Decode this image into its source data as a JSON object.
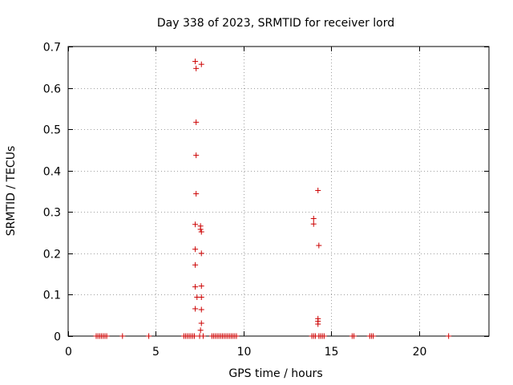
{
  "chart_data": {
    "type": "scatter",
    "title": "Day 338 of 2023, SRMTID for receiver lord",
    "xlabel": "GPS time / hours",
    "ylabel": "SRMTID / TECUs",
    "xlim": [
      0,
      24
    ],
    "ylim": [
      0,
      0.7
    ],
    "xticks": [
      0,
      5,
      10,
      15,
      20
    ],
    "yticks": [
      0,
      0.1,
      0.2,
      0.3,
      0.4,
      0.5,
      0.6,
      0.7
    ],
    "xtick_labels": [
      "0",
      "5",
      "10",
      "15",
      "20"
    ],
    "ytick_labels": [
      "0",
      "0.1",
      "0.2",
      "0.3",
      "0.4",
      "0.5",
      "0.6",
      "0.7"
    ],
    "grid": true,
    "marker": "+",
    "color": "#cc0000",
    "points": [
      [
        7.25,
        0.664
      ],
      [
        7.3,
        0.647
      ],
      [
        7.6,
        0.657
      ],
      [
        7.3,
        0.517
      ],
      [
        7.3,
        0.437
      ],
      [
        7.3,
        0.344
      ],
      [
        7.25,
        0.27
      ],
      [
        7.55,
        0.266
      ],
      [
        7.55,
        0.258
      ],
      [
        7.6,
        0.252
      ],
      [
        7.25,
        0.21
      ],
      [
        7.6,
        0.2
      ],
      [
        7.25,
        0.172
      ],
      [
        7.25,
        0.119
      ],
      [
        7.6,
        0.121
      ],
      [
        7.35,
        0.094
      ],
      [
        7.6,
        0.094
      ],
      [
        7.25,
        0.066
      ],
      [
        7.6,
        0.064
      ],
      [
        7.6,
        0.031
      ],
      [
        7.55,
        0.014
      ],
      [
        14.25,
        0.352
      ],
      [
        14.0,
        0.284
      ],
      [
        14.0,
        0.271
      ],
      [
        14.3,
        0.219
      ],
      [
        14.25,
        0.042
      ],
      [
        14.25,
        0.036
      ],
      [
        14.25,
        0.029
      ],
      [
        1.6,
        0
      ],
      [
        1.7,
        0
      ],
      [
        1.8,
        0
      ],
      [
        1.9,
        0
      ],
      [
        2.0,
        0
      ],
      [
        2.1,
        0
      ],
      [
        2.2,
        0
      ],
      [
        3.1,
        0
      ],
      [
        4.6,
        0
      ],
      [
        6.6,
        0
      ],
      [
        6.7,
        0
      ],
      [
        6.8,
        0
      ],
      [
        6.9,
        0
      ],
      [
        7.0,
        0
      ],
      [
        7.1,
        0
      ],
      [
        7.2,
        0
      ],
      [
        7.5,
        0
      ],
      [
        7.7,
        0
      ],
      [
        8.2,
        0
      ],
      [
        8.3,
        0
      ],
      [
        8.4,
        0
      ],
      [
        8.5,
        0
      ],
      [
        8.6,
        0
      ],
      [
        8.7,
        0
      ],
      [
        8.8,
        0
      ],
      [
        8.9,
        0
      ],
      [
        9.0,
        0
      ],
      [
        9.1,
        0
      ],
      [
        9.2,
        0
      ],
      [
        9.3,
        0
      ],
      [
        9.4,
        0
      ],
      [
        9.5,
        0
      ],
      [
        9.6,
        0
      ],
      [
        13.9,
        0
      ],
      [
        14.0,
        0
      ],
      [
        14.1,
        0
      ],
      [
        14.3,
        0
      ],
      [
        14.4,
        0
      ],
      [
        14.5,
        0
      ],
      [
        14.6,
        0
      ],
      [
        16.2,
        0
      ],
      [
        16.3,
        0
      ],
      [
        17.2,
        0
      ],
      [
        17.3,
        0
      ],
      [
        17.4,
        0
      ],
      [
        21.7,
        0
      ]
    ]
  }
}
